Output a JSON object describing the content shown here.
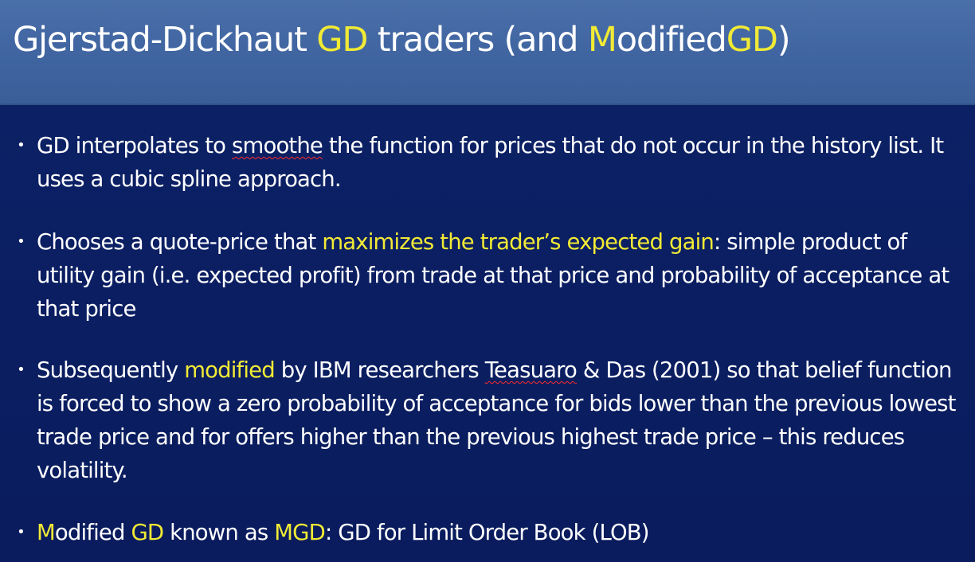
{
  "title": {
    "pre": "Gjerstad-Dickhaut ",
    "hl1": "GD",
    "mid": " traders (and ",
    "hl2": "M",
    "mid2": "odified",
    "hl3": "GD",
    "post": ")"
  },
  "bullets": [
    {
      "dot": "•",
      "pre": "GD interpolates to ",
      "squiggle": "smoothe",
      "post": " the function for prices that do not occur in the history list. It uses a cubic spline approach."
    },
    {
      "dot": "•",
      "pre": "Chooses a quote-price that ",
      "highlight": "maximizes the trader’s expected gain",
      "post": ": simple product of utility gain (i.e. expected profit) from trade at that price and probability of acceptance at that price"
    },
    {
      "dot": "•",
      "pre": "Subsequently ",
      "highlight": "modified",
      "mid": " by IBM researchers ",
      "squiggle": "Teasuaro",
      "post": " & Das (2001) so that belief function is forced to show a zero probability of acceptance for bids lower than the previous lowest trade price and for offers higher than the previous highest trade price – this reduces volatility."
    },
    {
      "dot": "•",
      "hl1": "M",
      "text1": "odified ",
      "hl2": "GD",
      "text2": " known as ",
      "hl3": "MGD",
      "post": ": GD for Limit Order Book (LOB)"
    }
  ],
  "colors": {
    "header_bg": "#4a6fa9",
    "body_bg": "#0b1e63",
    "highlight": "#f1ea35",
    "text": "#ffffff",
    "spellcheck": "#ff2b2b"
  }
}
